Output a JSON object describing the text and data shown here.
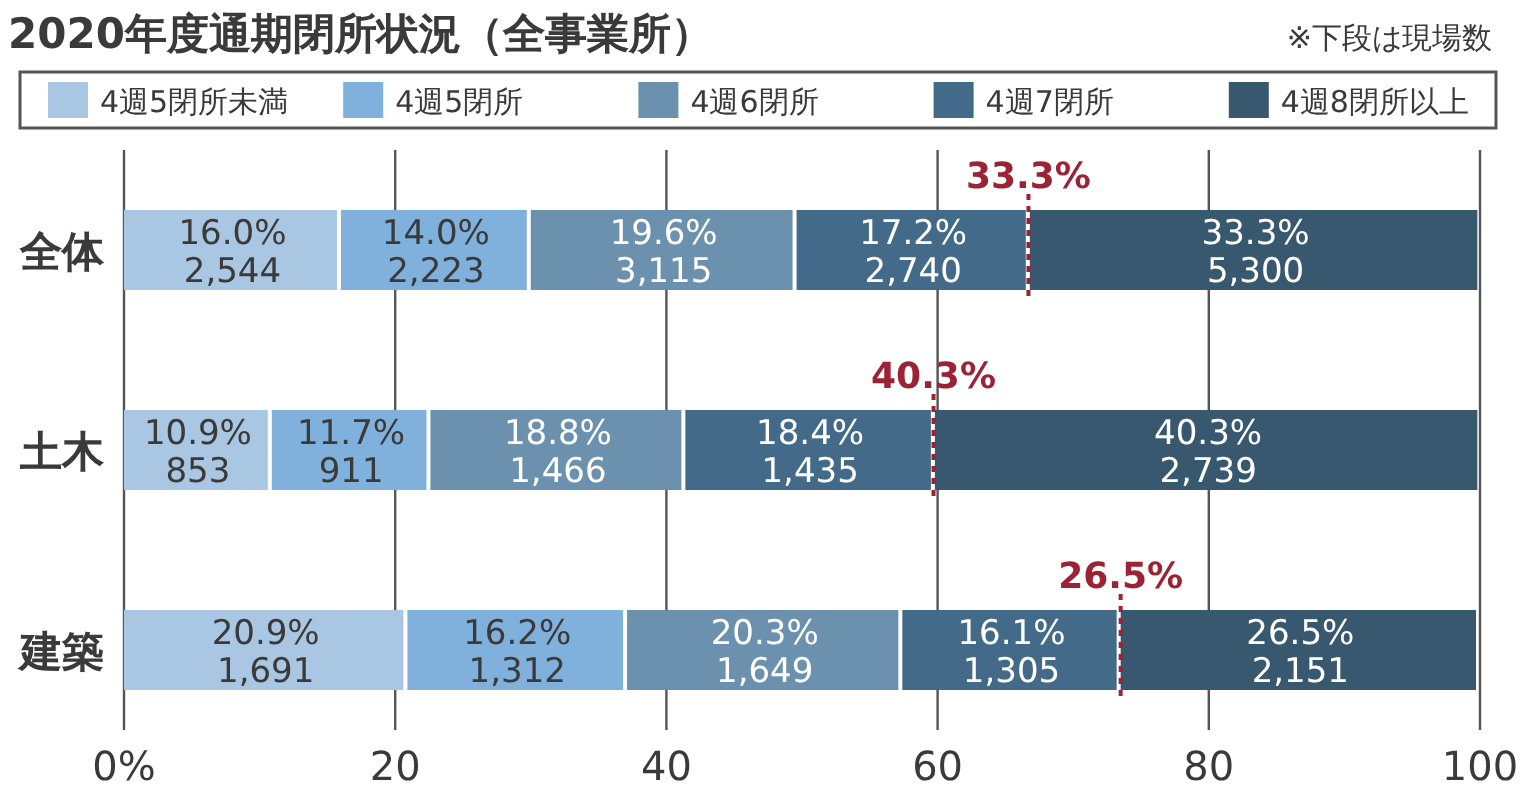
{
  "chart_data": {
    "type": "bar",
    "orientation": "horizontal",
    "stacked": true,
    "title": "2020年度通期閉所状況（全事業所）",
    "categories": [
      "全体",
      "土木",
      "建築"
    ],
    "series": [
      {
        "name": "4週5閉所未満",
        "color": "#a9c7e2",
        "values": [
          16.0,
          10.9,
          20.9
        ],
        "value_labels": [
          "16.0%\n2,544",
          "10.9%\n853",
          "20.9%\n1,691"
        ]
      },
      {
        "name": "4週5閉所",
        "color": "#7fb1dc",
        "values": [
          14.0,
          11.7,
          16.2
        ],
        "value_labels": [
          "14.0%\n2,223",
          "11.7%\n911",
          "16.2%\n1,312"
        ]
      },
      {
        "name": "4週6閉所",
        "color": "#6b91ae",
        "values": [
          19.6,
          18.8,
          20.3
        ],
        "value_labels": [
          "19.6%\n3,115",
          "18.8%\n1,466",
          "20.3%\n1,649"
        ]
      },
      {
        "name": "4週7閉所",
        "color": "#436a88",
        "values": [
          17.2,
          18.4,
          16.1
        ],
        "value_labels": [
          "17.2%\n2,740",
          "18.4%\n1,435",
          "16.1%\n1,305"
        ]
      },
      {
        "name": "4週8閉所以上",
        "color": "#38586f",
        "values": [
          33.3,
          40.3,
          26.5
        ],
        "value_labels": [
          "33.3%\n5,300",
          "40.3%\n2,739",
          "26.5%\n2,151"
        ]
      }
    ],
    "xlim": [
      0,
      100
    ],
    "xticks": [
      {
        "value": 0,
        "label": "0%"
      },
      20,
      40,
      60,
      80,
      100
    ],
    "grid": "x",
    "legend": "top",
    "annotations": [
      {
        "text": "33.3%",
        "x": 66.7,
        "y": "全体"
      },
      {
        "text": "40.3%",
        "x": 59.7,
        "y": "土木"
      },
      {
        "text": "26.5%",
        "x": 73.5,
        "y": "建築"
      },
      "※下段は現場数"
    ]
  }
}
